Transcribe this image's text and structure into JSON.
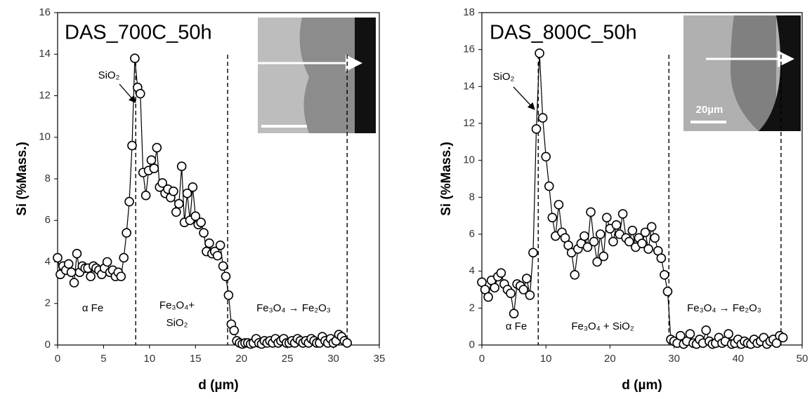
{
  "chart_data": [
    {
      "type": "line",
      "title": "DAS_700C_50h",
      "xlabel": "d (µm)",
      "ylabel": "Si (%Mass.)",
      "xlim": [
        0,
        35
      ],
      "xticks": [
        0,
        5,
        10,
        15,
        20,
        25,
        30,
        35
      ],
      "ylim": [
        0,
        16
      ],
      "yticks": [
        0,
        2,
        4,
        6,
        8,
        10,
        12,
        14,
        16
      ],
      "boundaries": [
        8.5,
        18.5,
        31.5
      ],
      "annotations": [
        "SiO₂",
        "α Fe",
        "Fe₃O₄+",
        "SiO₂",
        "Fe₃O₄ → Fe₂O₃"
      ],
      "x": [
        0,
        0.3,
        0.6,
        0.9,
        1.2,
        1.5,
        1.8,
        2.1,
        2.4,
        2.7,
        3,
        3.3,
        3.6,
        3.9,
        4.2,
        4.5,
        4.8,
        5.1,
        5.4,
        5.7,
        6,
        6.3,
        6.6,
        6.9,
        7.2,
        7.5,
        7.8,
        8.1,
        8.4,
        8.7,
        9,
        9.3,
        9.6,
        9.9,
        10.2,
        10.5,
        10.8,
        11.1,
        11.4,
        11.7,
        12,
        12.3,
        12.6,
        12.9,
        13.2,
        13.5,
        13.8,
        14.1,
        14.4,
        14.7,
        15,
        15.3,
        15.6,
        15.9,
        16.2,
        16.5,
        16.8,
        17.1,
        17.4,
        17.7,
        18,
        18.3,
        18.6,
        18.9,
        19.2,
        19.5,
        19.8,
        20.1,
        20.4,
        20.7,
        21,
        21.3,
        21.6,
        21.9,
        22.2,
        22.5,
        22.8,
        23.1,
        23.4,
        23.7,
        24,
        24.3,
        24.6,
        24.9,
        25.2,
        25.5,
        25.8,
        26.1,
        26.4,
        26.7,
        27,
        27.3,
        27.6,
        27.9,
        28.2,
        28.5,
        28.8,
        29.1,
        29.4,
        29.7,
        30,
        30.3,
        30.6,
        30.9,
        31.2,
        31.5
      ],
      "values": [
        4.2,
        3.4,
        3.8,
        3.6,
        3.9,
        3.5,
        3.0,
        4.4,
        3.5,
        3.8,
        3.7,
        3.7,
        3.3,
        3.8,
        3.7,
        3.6,
        3.4,
        3.7,
        4.0,
        3.5,
        3.6,
        3.3,
        3.5,
        3.3,
        4.2,
        5.4,
        6.9,
        9.6,
        13.8,
        12.4,
        12.1,
        8.3,
        7.2,
        8.4,
        8.9,
        8.5,
        9.5,
        7.6,
        7.8,
        7.3,
        7.5,
        7.1,
        7.4,
        6.4,
        6.8,
        8.6,
        5.9,
        7.3,
        6.0,
        7.6,
        6.2,
        5.8,
        5.9,
        5.4,
        4.5,
        4.9,
        4.4,
        4.5,
        4.3,
        4.8,
        3.8,
        3.3,
        2.4,
        1.0,
        0.7,
        0.2,
        0.1,
        0.05,
        0.1,
        0.1,
        0.05,
        0.1,
        0.3,
        0.1,
        0.05,
        0.2,
        0.1,
        0.2,
        0.1,
        0.3,
        0.1,
        0.2,
        0.3,
        0.1,
        0.1,
        0.2,
        0.1,
        0.3,
        0.2,
        0.1,
        0.2,
        0.1,
        0.3,
        0.2,
        0.1,
        0.1,
        0.4,
        0.2,
        0.1,
        0.3,
        0.1,
        0.2,
        0.5,
        0.4,
        0.2,
        0.1
      ]
    },
    {
      "type": "line",
      "title": "DAS_800C_50h",
      "xlabel": "d (µm)",
      "ylabel": "Si (%Mass.)",
      "xlim": [
        0,
        50
      ],
      "xticks": [
        0,
        10,
        20,
        30,
        40,
        50
      ],
      "ylim": [
        0,
        18
      ],
      "yticks": [
        0,
        2,
        4,
        6,
        8,
        10,
        12,
        14,
        16,
        18
      ],
      "boundaries": [
        8.8,
        29.2,
        46.7
      ],
      "annotations": [
        "SiO₂",
        "α Fe",
        "Fe₃O₄ + SiO₂",
        "Fe₃O₄ → Fe₂O₃"
      ],
      "inset_label": "20µm",
      "x": [
        0,
        0.5,
        1,
        1.5,
        2,
        2.5,
        3,
        3.5,
        4,
        4.5,
        5,
        5.5,
        6,
        6.5,
        7,
        7.5,
        8,
        8.5,
        9,
        9.5,
        10,
        10.5,
        11,
        11.5,
        12,
        12.5,
        13,
        13.5,
        14,
        14.5,
        15,
        15.5,
        16,
        16.5,
        17,
        17.5,
        18,
        18.5,
        19,
        19.5,
        20,
        20.5,
        21,
        21.5,
        22,
        22.5,
        23,
        23.5,
        24,
        24.5,
        25,
        25.5,
        26,
        26.5,
        27,
        27.5,
        28,
        28.5,
        29,
        29.5,
        30,
        30.5,
        31,
        31.5,
        32,
        32.5,
        33,
        33.5,
        34,
        34.5,
        35,
        35.5,
        36,
        36.5,
        37,
        37.5,
        38,
        38.5,
        39,
        39.5,
        40,
        40.5,
        41,
        41.5,
        42,
        42.5,
        43,
        43.5,
        44,
        44.5,
        45,
        45.5,
        46,
        46.5,
        47
      ],
      "values": [
        3.4,
        3.0,
        2.6,
        3.5,
        3.1,
        3.7,
        3.9,
        3.3,
        3.0,
        2.8,
        1.7,
        3.3,
        3.2,
        3.0,
        3.6,
        2.7,
        5.0,
        11.7,
        15.8,
        12.3,
        10.2,
        8.6,
        6.9,
        5.9,
        7.6,
        6.1,
        5.8,
        5.4,
        5.0,
        3.8,
        5.2,
        5.5,
        5.9,
        5.3,
        7.2,
        5.6,
        4.5,
        6.0,
        4.8,
        6.9,
        6.3,
        5.6,
        6.5,
        6.0,
        7.1,
        5.8,
        5.6,
        6.2,
        5.3,
        5.8,
        5.5,
        6.1,
        5.2,
        6.4,
        5.8,
        5.1,
        4.7,
        3.8,
        2.9,
        0.3,
        0.2,
        0.1,
        0.5,
        0.05,
        0.2,
        0.6,
        0.1,
        0.05,
        0.3,
        0.1,
        0.8,
        0.2,
        0.05,
        0.1,
        0.4,
        0.1,
        0.2,
        0.6,
        0.05,
        0.1,
        0.3,
        0.05,
        0.2,
        0.1,
        0.05,
        0.3,
        0.1,
        0.2,
        0.4,
        0.05,
        0.2,
        0.3,
        0.1,
        0.5,
        0.4
      ]
    }
  ]
}
